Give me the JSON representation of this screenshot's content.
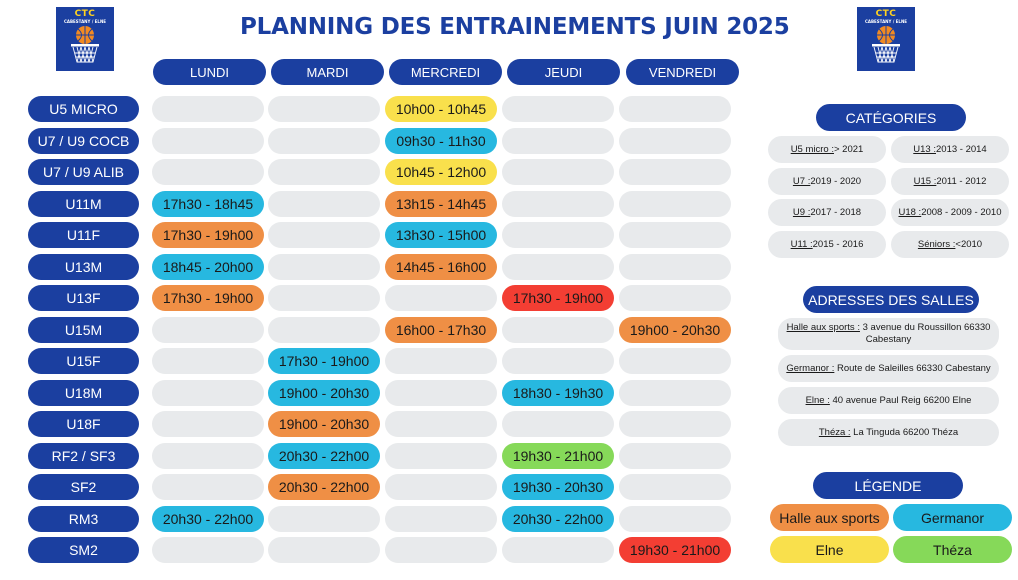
{
  "header": {
    "title": "PLANNING DES ENTRAINEMENTS JUIN 2025",
    "logo_text": "CTC",
    "logo_subtext": "CABESTANY / ELNE"
  },
  "days": [
    "LUNDI",
    "MARDI",
    "MERCREDI",
    "JEUDI",
    "VENDREDI"
  ],
  "rows": [
    {
      "team": "U5 MICRO",
      "slots": [
        null,
        null,
        {
          "time": "10h00 - 10h45",
          "venue": "elne"
        },
        null,
        null
      ]
    },
    {
      "team": "U7 / U9 COCB",
      "slots": [
        null,
        null,
        {
          "time": "09h30 - 11h30",
          "venue": "germanor"
        },
        null,
        null
      ]
    },
    {
      "team": "U7 / U9 ALIB",
      "slots": [
        null,
        null,
        {
          "time": "10h45 - 12h00",
          "venue": "elne"
        },
        null,
        null
      ]
    },
    {
      "team": "U11M",
      "slots": [
        {
          "time": "17h30 - 18h45",
          "venue": "germanor"
        },
        null,
        {
          "time": "13h15 - 14h45",
          "venue": "halle"
        },
        null,
        null
      ]
    },
    {
      "team": "U11F",
      "slots": [
        {
          "time": "17h30 - 19h00",
          "venue": "halle"
        },
        null,
        {
          "time": "13h30 - 15h00",
          "venue": "germanor"
        },
        null,
        null
      ]
    },
    {
      "team": "U13M",
      "slots": [
        {
          "time": "18h45 - 20h00",
          "venue": "germanor"
        },
        null,
        {
          "time": "14h45 - 16h00",
          "venue": "halle"
        },
        null,
        null
      ]
    },
    {
      "team": "U13F",
      "slots": [
        {
          "time": "17h30 - 19h00",
          "venue": "halle"
        },
        null,
        null,
        {
          "time": "17h30 - 19h00",
          "venue": "red"
        },
        null
      ]
    },
    {
      "team": "U15M",
      "slots": [
        null,
        null,
        {
          "time": "16h00 - 17h30",
          "venue": "halle"
        },
        null,
        {
          "time": "19h00 - 20h30",
          "venue": "halle"
        }
      ]
    },
    {
      "team": "U15F",
      "slots": [
        null,
        {
          "time": "17h30 - 19h00",
          "venue": "germanor"
        },
        null,
        null,
        null
      ]
    },
    {
      "team": "U18M",
      "slots": [
        null,
        {
          "time": "19h00 - 20h30",
          "venue": "germanor"
        },
        null,
        {
          "time": "18h30 - 19h30",
          "venue": "germanor"
        },
        null
      ]
    },
    {
      "team": "U18F",
      "slots": [
        null,
        {
          "time": "19h00 - 20h30",
          "venue": "halle"
        },
        null,
        null,
        null
      ]
    },
    {
      "team": "RF2 / SF3",
      "slots": [
        null,
        {
          "time": "20h30 - 22h00",
          "venue": "germanor"
        },
        null,
        {
          "time": "19h30 - 21h00",
          "venue": "theza"
        },
        null
      ]
    },
    {
      "team": "SF2",
      "slots": [
        null,
        {
          "time": "20h30 - 22h00",
          "venue": "halle"
        },
        null,
        {
          "time": "19h30 - 20h30",
          "venue": "germanor"
        },
        null
      ]
    },
    {
      "team": "RM3",
      "slots": [
        {
          "time": "20h30 - 22h00",
          "venue": "germanor"
        },
        null,
        null,
        {
          "time": "20h30 - 22h00",
          "venue": "germanor"
        },
        null
      ]
    },
    {
      "team": "SM2",
      "slots": [
        null,
        null,
        null,
        null,
        {
          "time": "19h30 - 21h00",
          "venue": "red"
        }
      ]
    }
  ],
  "categories": {
    "heading": "CATÉGORIES",
    "items": [
      {
        "label": "U5 micro :",
        "value": " > 2021"
      },
      {
        "label": "U13 :",
        "value": " 2013 - 2014"
      },
      {
        "label": "U7 :",
        "value": " 2019 - 2020"
      },
      {
        "label": "U15 :",
        "value": " 2011 - 2012"
      },
      {
        "label": "U9 :",
        "value": " 2017 - 2018"
      },
      {
        "label": "U18 :",
        "value": " 2008 - 2009 - 2010"
      },
      {
        "label": "U11 :",
        "value": " 2015 - 2016"
      },
      {
        "label": "Séniors :",
        "value": " <2010"
      }
    ]
  },
  "addresses": {
    "heading": "ADRESSES DES SALLES",
    "items": [
      {
        "label": "Halle aux sports :",
        "value": " 3 avenue du Roussillon 66330 Cabestany"
      },
      {
        "label": "Germanor :",
        "value": " Route de Saleilles 66330 Cabestany"
      },
      {
        "label": "Elne :",
        "value": " 40 avenue Paul Reig 66200 Elne"
      },
      {
        "label": "Théza :",
        "value": " La Tinguda 66200 Théza"
      }
    ]
  },
  "legend": {
    "heading": "LÉGENDE",
    "items": [
      {
        "label": "Halle aux sports",
        "color": "#ef8f45"
      },
      {
        "label": "Germanor",
        "color": "#27b8e0"
      },
      {
        "label": "Elne",
        "color": "#f9e04c"
      },
      {
        "label": "Théza",
        "color": "#86d959"
      }
    ]
  },
  "colors": {
    "brand_blue": "#1b3fa0",
    "empty_slot": "#e8eaec",
    "halle": "#ef8f45",
    "germanor": "#27b8e0",
    "elne": "#f9e04c",
    "theza": "#86d959",
    "red": "#f33e33"
  }
}
